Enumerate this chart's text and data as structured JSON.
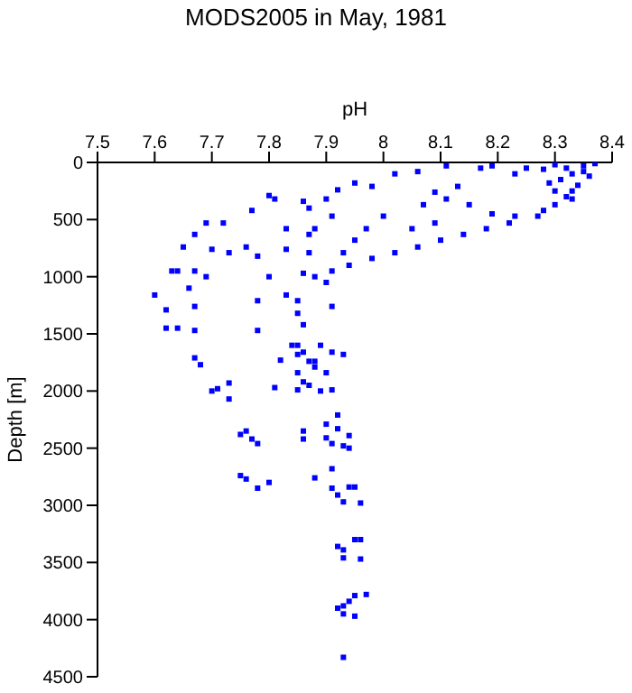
{
  "chart_data": {
    "type": "scatter",
    "title": "MODS2005 in May, 1981",
    "xlabel": "pH",
    "ylabel": "Depth [m]",
    "xlim": [
      7.5,
      8.4
    ],
    "xticks": [
      7.5,
      7.6,
      7.7,
      7.8,
      7.9,
      8,
      8.1,
      8.2,
      8.3,
      8.4
    ],
    "ylim": [
      4500,
      0
    ],
    "yticks": [
      0,
      500,
      1000,
      1500,
      2000,
      2500,
      3000,
      3500,
      4000,
      4500
    ],
    "grid": false,
    "marker": "square",
    "series": [
      {
        "color": "#0000ff",
        "x": [
          8.3,
          8.32,
          8.35,
          8.37,
          8.33,
          8.31,
          8.36,
          8.34,
          8.3,
          8.32,
          8.28,
          8.29,
          8.35,
          8.33,
          8.11,
          8.17,
          8.19,
          8.23,
          8.25,
          8.13,
          8.09,
          8.06,
          8.02,
          7.98,
          7.95,
          7.92,
          7.9,
          7.87,
          7.81,
          7.86,
          8.07,
          8.11,
          8.15,
          8.19,
          8.23,
          8.28,
          8.3,
          8.33,
          8.27,
          8.22,
          8.18,
          8.14,
          8.1,
          8.06,
          8.02,
          7.98,
          7.94,
          7.91,
          7.88,
          7.86,
          7.9,
          8.0,
          8.05,
          8.09,
          7.97,
          7.95,
          7.93,
          7.91,
          7.88,
          7.8,
          7.77,
          7.72,
          7.69,
          7.67,
          7.65,
          7.64,
          7.63,
          7.6,
          7.62,
          7.62,
          7.64,
          7.67,
          7.67,
          7.7,
          7.73,
          7.76,
          7.78,
          7.67,
          7.69,
          7.66,
          7.83,
          7.83,
          7.87,
          7.87,
          7.83,
          7.85,
          7.85,
          7.86,
          7.84,
          7.85,
          7.87,
          7.78,
          7.78,
          7.8,
          7.91,
          7.67,
          7.68,
          7.7,
          7.71,
          7.73,
          7.73,
          7.85,
          7.86,
          7.88,
          7.89,
          7.91,
          7.93,
          7.82,
          7.85,
          7.86,
          7.87,
          7.85,
          7.89,
          7.91,
          7.81,
          7.9,
          7.88,
          7.92,
          7.9,
          7.92,
          7.94,
          7.75,
          7.76,
          7.77,
          7.78,
          7.86,
          7.86,
          7.9,
          7.91,
          7.93,
          7.94,
          7.91,
          7.88,
          7.75,
          7.76,
          7.78,
          7.8,
          7.91,
          7.92,
          7.94,
          7.95,
          7.93,
          7.96,
          7.95,
          7.96,
          7.92,
          7.93,
          7.93,
          7.96,
          7.97,
          7.95,
          7.94,
          7.92,
          7.93,
          7.93,
          7.95,
          7.93
        ],
        "values": [
          20,
          50,
          30,
          10,
          100,
          150,
          120,
          200,
          250,
          300,
          60,
          180,
          80,
          250,
          30,
          50,
          30,
          100,
          50,
          210,
          260,
          80,
          100,
          210,
          180,
          240,
          320,
          400,
          320,
          340,
          370,
          320,
          370,
          450,
          470,
          420,
          370,
          320,
          470,
          530,
          580,
          630,
          680,
          740,
          790,
          840,
          900,
          950,
          1000,
          970,
          1050,
          470,
          580,
          530,
          580,
          680,
          790,
          470,
          580,
          290,
          420,
          530,
          530,
          630,
          740,
          950,
          950,
          1160,
          1290,
          1450,
          1450,
          1470,
          1260,
          760,
          790,
          740,
          820,
          950,
          1000,
          1100,
          580,
          760,
          630,
          790,
          1160,
          1210,
          1320,
          1420,
          1600,
          1680,
          1740,
          1210,
          1470,
          1000,
          1260,
          1710,
          1770,
          2000,
          1980,
          1930,
          2070,
          1600,
          1660,
          1740,
          1600,
          1660,
          1680,
          1730,
          1840,
          1920,
          1950,
          1990,
          2000,
          1990,
          1970,
          1840,
          1790,
          2210,
          2290,
          2330,
          2390,
          2380,
          2350,
          2420,
          2460,
          2350,
          2420,
          2410,
          2460,
          2480,
          2500,
          2680,
          2760,
          2740,
          2770,
          2850,
          2800,
          2850,
          2910,
          2840,
          2840,
          2970,
          2980,
          3300,
          3300,
          3360,
          3390,
          3460,
          3470,
          3780,
          3790,
          3840,
          3900,
          3880,
          3950,
          3970,
          4330
        ]
      }
    ]
  }
}
